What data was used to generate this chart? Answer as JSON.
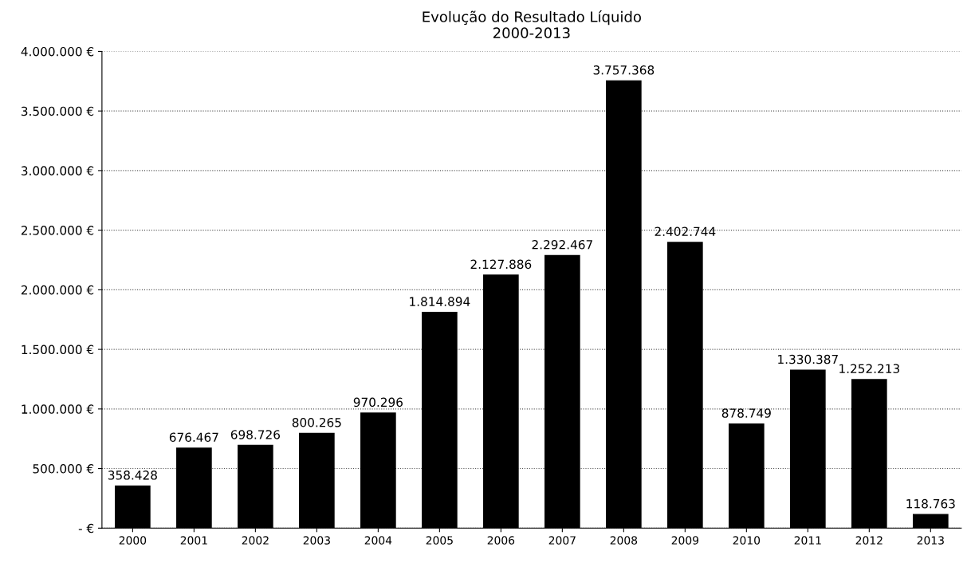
{
  "chart_data": {
    "type": "bar",
    "title": "Evolução do Resultado Líquido",
    "subtitle": "2000-2013",
    "categories": [
      "2000",
      "2001",
      "2002",
      "2003",
      "2004",
      "2005",
      "2006",
      "2007",
      "2008",
      "2009",
      "2010",
      "2011",
      "2012",
      "2013"
    ],
    "values": [
      358428,
      676467,
      698726,
      800265,
      970296,
      1814894,
      2127886,
      2292467,
      3757368,
      2402744,
      878749,
      1330387,
      1252213,
      118763
    ],
    "value_labels": [
      "358.428",
      "676.467",
      "698.726",
      "800.265",
      "970.296",
      "1.814.894",
      "2.127.886",
      "2.292.467",
      "3.757.368",
      "2.402.744",
      "878.749",
      "1.330.387",
      "1.252.213",
      "118.763"
    ],
    "color": "#000000",
    "ylim": [
      0,
      4000000
    ],
    "yticks": [
      {
        "value": 0,
        "label": "- €"
      },
      {
        "value": 500000,
        "label": "500.000 €"
      },
      {
        "value": 1000000,
        "label": "1.000.000 €"
      },
      {
        "value": 1500000,
        "label": "1.500.000 €"
      },
      {
        "value": 2000000,
        "label": "2.000.000 €"
      },
      {
        "value": 2500000,
        "label": "2.500.000 €"
      },
      {
        "value": 3000000,
        "label": "3.000.000 €"
      },
      {
        "value": 3500000,
        "label": "3.500.000 €"
      },
      {
        "value": 4000000,
        "label": "4.000.000 €"
      }
    ],
    "grid": "y"
  }
}
